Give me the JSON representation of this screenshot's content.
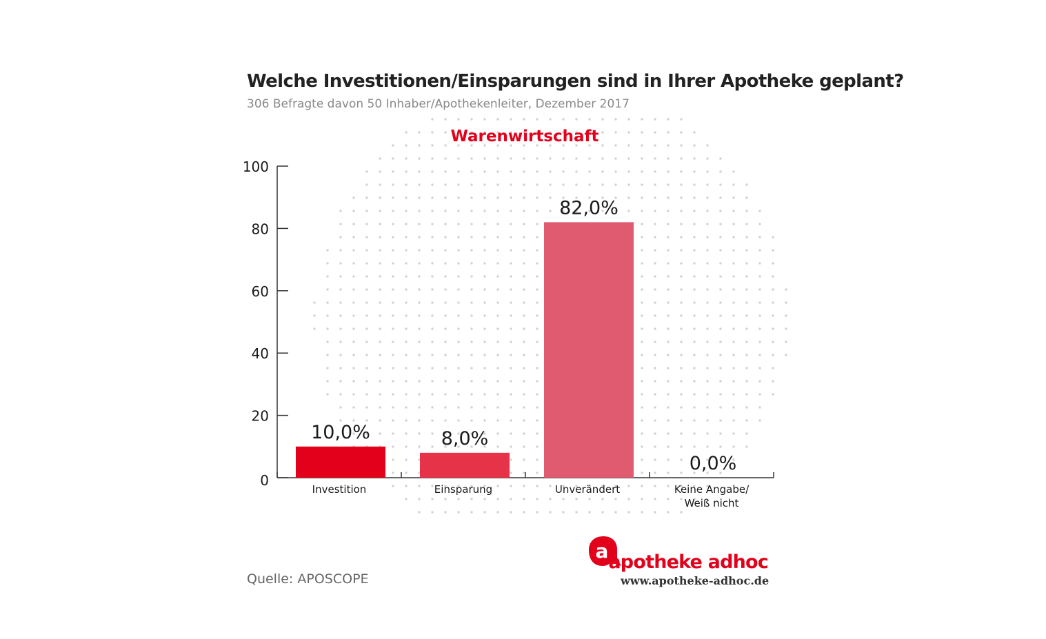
{
  "title": "Welche Investitionen/Einsparungen sind in Ihrer Apotheke geplant?",
  "subtitle": "306 Befragte davon 50 Inhaber/Apothekenleiter, Dezember 2017",
  "source": "Quelle: APOSCOPE",
  "brand": {
    "name": "apotheke adhoc",
    "logo_letter": "a",
    "url": "www.apotheke-adhoc.de",
    "color": "#e2001a"
  },
  "chart_data": {
    "type": "bar",
    "title": "Warenwirtschaft",
    "categories": [
      [
        "Investition"
      ],
      [
        "Einsparung"
      ],
      [
        "Unverändert"
      ],
      [
        "Keine Angabe/",
        "Weiß nicht"
      ]
    ],
    "values": [
      10.0,
      8.0,
      82.0,
      0.0
    ],
    "value_labels": [
      "10,0%",
      "8,0%",
      "82,0%",
      "0,0%"
    ],
    "colors": [
      "#e2001a",
      "#e63347",
      "#e05a70",
      "#e05a70"
    ],
    "ylim": [
      0,
      100
    ],
    "yticks": [
      0,
      20,
      40,
      60,
      80,
      100
    ],
    "grid": false,
    "legend": "none",
    "title_color": "#e2001a"
  }
}
